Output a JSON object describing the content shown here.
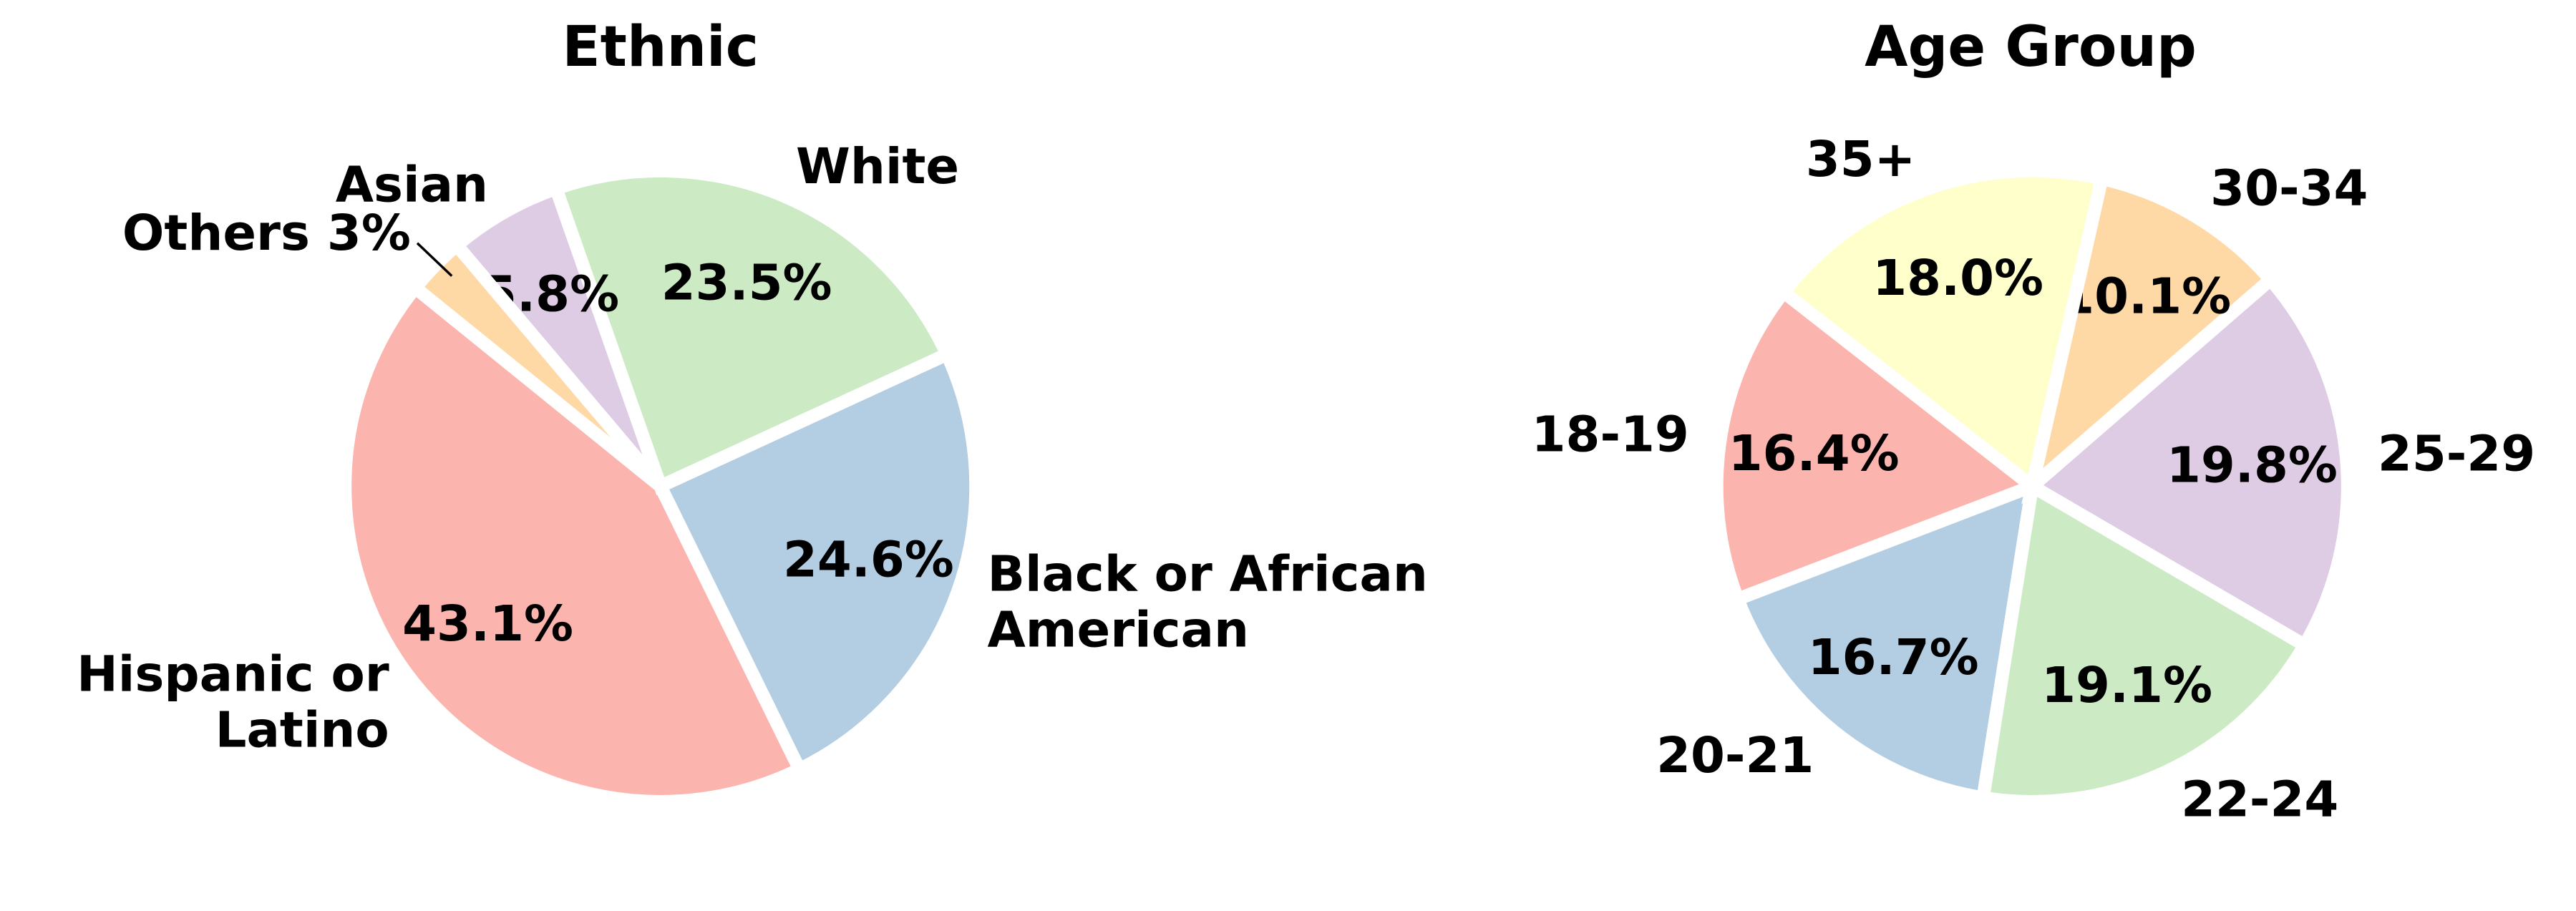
{
  "chart_data": [
    {
      "type": "pie",
      "title": "Ethnic",
      "categories": [
        "Hispanic or Latino",
        "Black or African American",
        "White",
        "Asian",
        "Others"
      ],
      "labels": [
        "Hispanic or\nLatino",
        "Black or African\nAmerican",
        "White",
        "Asian",
        "Others 3%"
      ],
      "values": [
        43.1,
        24.6,
        23.5,
        5.8,
        3.0
      ],
      "pct_labels": [
        "43.1%",
        "24.6%",
        "23.5%",
        "5.8%",
        ""
      ],
      "colors": [
        "#fbb4ae",
        "#b3cde3",
        "#ccebc5",
        "#decbe4",
        "#fed9a6"
      ],
      "direction": "counterclockwise"
    },
    {
      "type": "pie",
      "title": "Age Group",
      "categories": [
        "18-19",
        "20-21",
        "22-24",
        "25-29",
        "30-34",
        "35+"
      ],
      "labels": [
        "18-19",
        "20-21",
        "22-24",
        "25-29",
        "30-34",
        "35+"
      ],
      "values": [
        16.4,
        16.7,
        19.1,
        19.8,
        10.1,
        18.0
      ],
      "pct_labels": [
        "16.4%",
        "16.7%",
        "19.1%",
        "19.8%",
        "10.1%",
        "18.0%"
      ],
      "colors": [
        "#fbb4ae",
        "#b3cde3",
        "#ccebc5",
        "#decbe4",
        "#fed9a6",
        "#ffffcc"
      ],
      "direction": "counterclockwise"
    }
  ]
}
